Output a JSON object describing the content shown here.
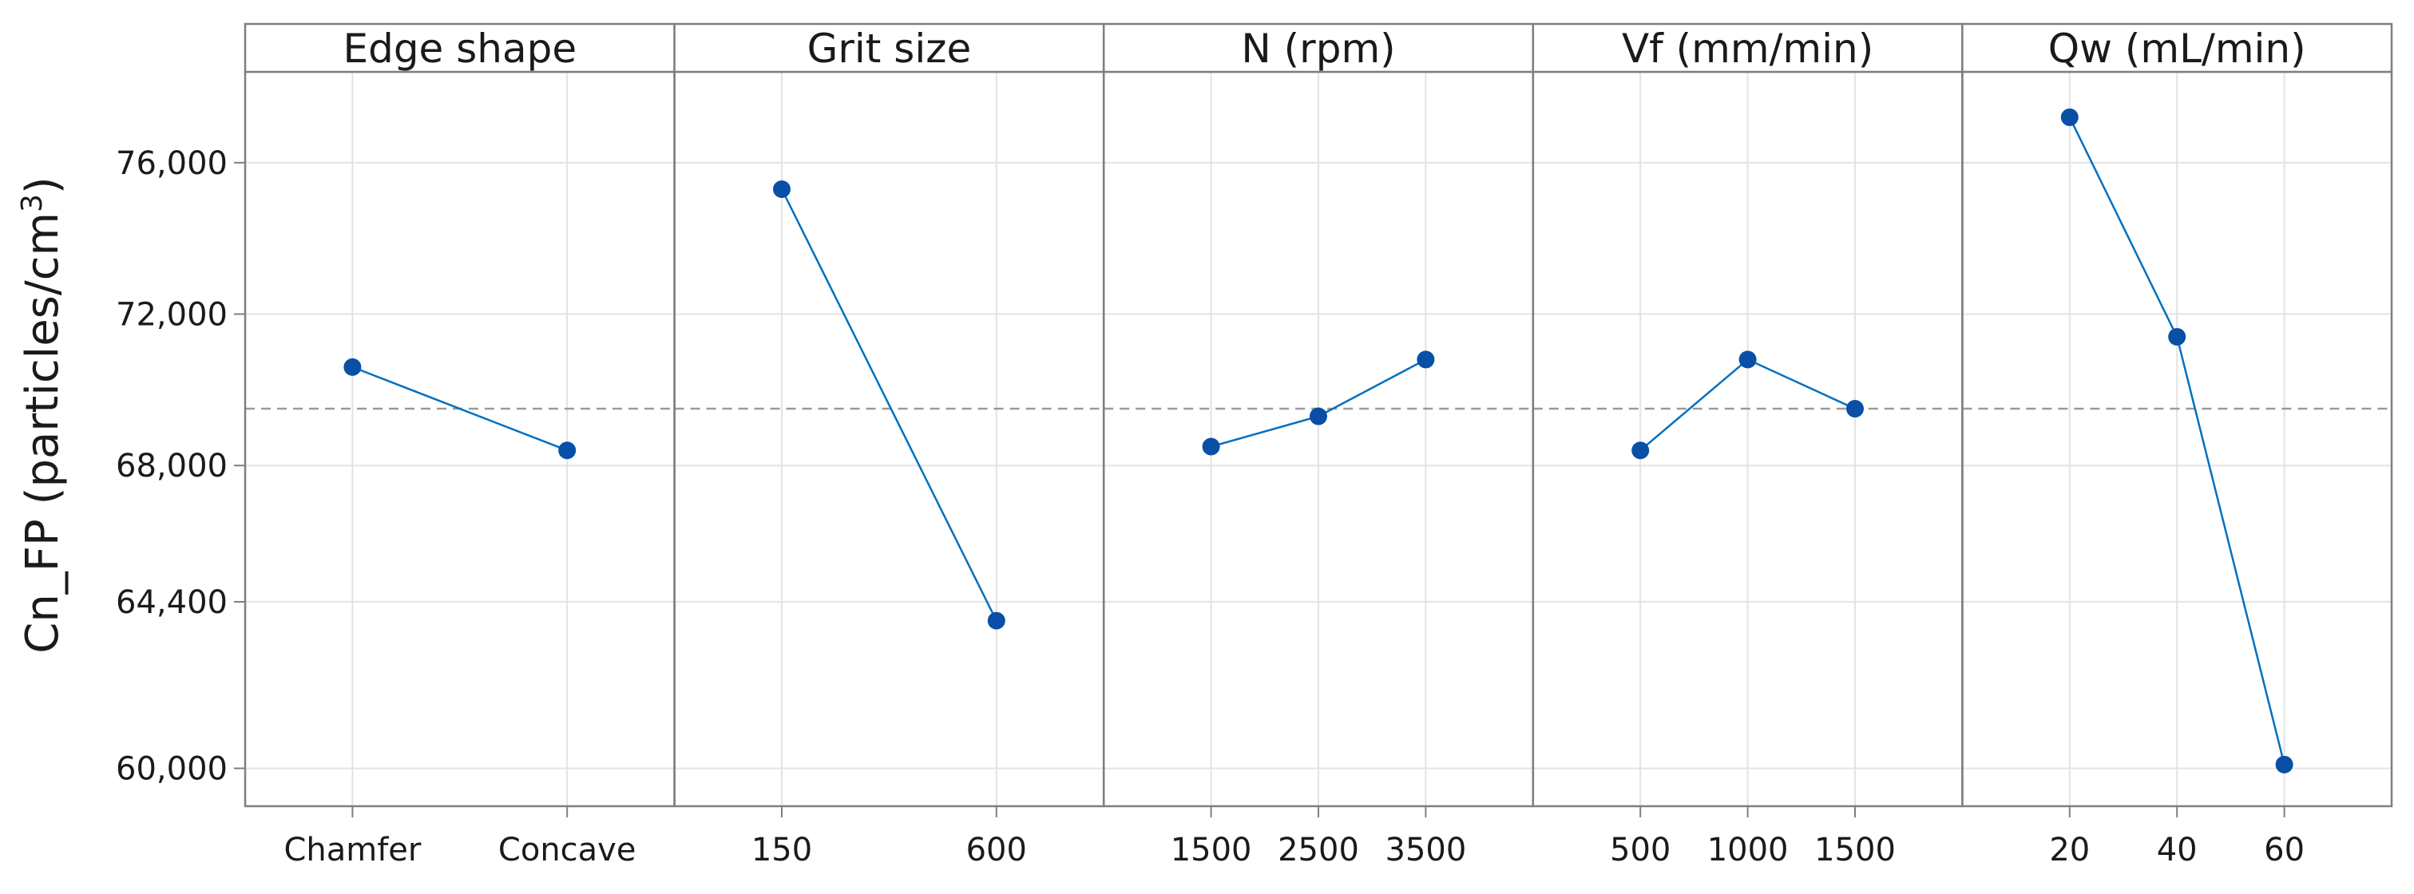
{
  "chart_data": {
    "type": "line",
    "title": "",
    "ylabel_main": "Cn_FP (particles/cm",
    "ylabel_sup": "3",
    "ylabel_end": ")",
    "ylim": [
      59000,
      78400
    ],
    "yticks": [
      60000,
      64400,
      68000,
      72000,
      76000
    ],
    "ytick_labels": [
      "60,000",
      "64,400",
      "68,000",
      "72,000",
      "76,000"
    ],
    "grand_mean": 69500,
    "colors": {
      "line": "#0070c0",
      "marker": "#0a4fa6",
      "mean": "#9a9a9a",
      "grid": "#e3e3e3",
      "frame": "#7f7f7f"
    },
    "panels": [
      {
        "factor": "Edge shape",
        "levels": [
          "Chamfer",
          "Concave"
        ],
        "values": [
          70600,
          68400
        ]
      },
      {
        "factor": "Grit size",
        "levels": [
          "150",
          "600"
        ],
        "values": [
          75300,
          63900
        ]
      },
      {
        "factor": "N (rpm)",
        "levels": [
          "1500",
          "2500",
          "3500"
        ],
        "values": [
          68500,
          69300,
          70800
        ]
      },
      {
        "factor": "Vf (mm/min)",
        "levels": [
          "500",
          "1000",
          "1500"
        ],
        "values": [
          68400,
          70800,
          69500
        ]
      },
      {
        "factor": "Qw (mL/min)",
        "levels": [
          "20",
          "40",
          "60"
        ],
        "values": [
          77200,
          71400,
          60100
        ]
      }
    ]
  }
}
